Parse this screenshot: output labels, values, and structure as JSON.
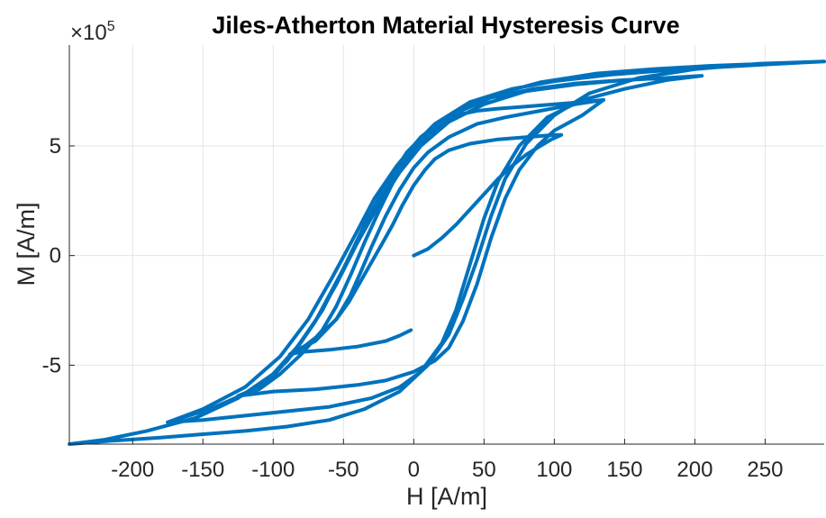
{
  "chart_data": {
    "type": "line",
    "title": "Jiles-Atherton Material Hysteresis Curve",
    "xlabel": "H [A/m]",
    "ylabel": "M [A/m]",
    "xlim": [
      -245,
      292
    ],
    "ylim": [
      -8.6,
      9.6
    ],
    "y_multiplier": "×10",
    "y_exponent": "5",
    "x_ticks": [
      -200,
      -150,
      -100,
      -50,
      0,
      50,
      100,
      150,
      200,
      250
    ],
    "x_tick_labels": [
      "-200",
      "-150",
      "-100",
      "-50",
      "0",
      "50",
      "100",
      "150",
      "200",
      "250"
    ],
    "y_ticks": [
      -5,
      0,
      5
    ],
    "y_tick_labels": [
      "-5",
      "0",
      "5"
    ],
    "grid": true,
    "color": "#0072bd",
    "series": [
      {
        "points": [
          [
            0,
            0
          ],
          [
            10,
            0.3
          ],
          [
            20,
            0.8
          ],
          [
            30,
            1.4
          ],
          [
            40,
            2.1
          ],
          [
            50,
            2.8
          ],
          [
            60,
            3.5
          ],
          [
            70,
            4.1
          ],
          [
            80,
            4.6
          ],
          [
            90,
            5.0
          ],
          [
            98,
            5.3
          ],
          [
            105,
            5.5
          ],
          [
            100,
            5.5
          ],
          [
            80,
            5.4
          ],
          [
            60,
            5.3
          ],
          [
            40,
            5.1
          ],
          [
            25,
            4.8
          ],
          [
            15,
            4.4
          ],
          [
            8,
            3.9
          ],
          [
            0,
            3.2
          ],
          [
            -8,
            2.3
          ],
          [
            -15,
            1.4
          ],
          [
            -22,
            0.6
          ],
          [
            -30,
            -0.3
          ],
          [
            -38,
            -1.2
          ],
          [
            -46,
            -2.1
          ],
          [
            -55,
            -2.9
          ],
          [
            -65,
            -3.5
          ],
          [
            -77,
            -4.1
          ],
          [
            -88,
            -4.5
          ],
          [
            -80,
            -4.4
          ],
          [
            -60,
            -4.3
          ],
          [
            -40,
            -4.15
          ],
          [
            -20,
            -3.9
          ],
          [
            -10,
            -3.65
          ],
          [
            -2,
            -3.4
          ]
        ]
      },
      {
        "points": [
          [
            -88,
            -4.5
          ],
          [
            -70,
            -3.9
          ],
          [
            -55,
            -2.9
          ],
          [
            -45,
            -1.8
          ],
          [
            -38,
            -0.8
          ],
          [
            -30,
            0.4
          ],
          [
            -20,
            1.8
          ],
          [
            -10,
            3.0
          ],
          [
            0,
            4.0
          ],
          [
            10,
            4.7
          ],
          [
            25,
            5.4
          ],
          [
            45,
            6.0
          ],
          [
            65,
            6.3
          ],
          [
            90,
            6.6
          ],
          [
            115,
            6.9
          ],
          [
            135,
            7.1
          ],
          [
            120,
            7.0
          ],
          [
            100,
            6.9
          ],
          [
            80,
            6.8
          ],
          [
            60,
            6.7
          ],
          [
            45,
            6.6
          ],
          [
            30,
            6.4
          ],
          [
            15,
            5.9
          ],
          [
            5,
            5.3
          ],
          [
            -5,
            4.4
          ],
          [
            -15,
            3.3
          ],
          [
            -25,
            2.0
          ],
          [
            -35,
            0.6
          ],
          [
            -45,
            -0.9
          ],
          [
            -55,
            -2.3
          ],
          [
            -65,
            -3.4
          ],
          [
            -80,
            -4.5
          ],
          [
            -95,
            -5.4
          ],
          [
            -110,
            -6.1
          ],
          [
            -125,
            -6.4
          ],
          [
            -100,
            -6.2
          ],
          [
            -70,
            -6.1
          ],
          [
            -40,
            -5.9
          ],
          [
            -20,
            -5.7
          ],
          [
            0,
            -5.3
          ],
          [
            15,
            -4.8
          ],
          [
            25,
            -4.2
          ],
          [
            35,
            -3.0
          ],
          [
            45,
            -1.3
          ],
          [
            55,
            0.8
          ],
          [
            65,
            2.6
          ],
          [
            75,
            3.9
          ],
          [
            88,
            5.0
          ],
          [
            100,
            5.7
          ],
          [
            120,
            6.4
          ],
          [
            135,
            7.1
          ]
        ]
      },
      {
        "points": [
          [
            -125,
            -6.4
          ],
          [
            -110,
            -6.0
          ],
          [
            -90,
            -4.8
          ],
          [
            -70,
            -3.0
          ],
          [
            -55,
            -1.2
          ],
          [
            -40,
            0.6
          ],
          [
            -25,
            2.3
          ],
          [
            -10,
            3.8
          ],
          [
            5,
            5.0
          ],
          [
            25,
            6.1
          ],
          [
            50,
            6.9
          ],
          [
            80,
            7.5
          ],
          [
            115,
            7.8
          ],
          [
            150,
            8.0
          ],
          [
            180,
            8.1
          ],
          [
            205,
            8.2
          ],
          [
            180,
            8.1
          ],
          [
            150,
            8.0
          ],
          [
            115,
            7.85
          ],
          [
            85,
            7.6
          ],
          [
            55,
            7.2
          ],
          [
            30,
            6.5
          ],
          [
            10,
            5.5
          ],
          [
            -10,
            4.0
          ],
          [
            -25,
            2.5
          ],
          [
            -40,
            0.6
          ],
          [
            -55,
            -1.3
          ],
          [
            -70,
            -3.0
          ],
          [
            -85,
            -4.4
          ],
          [
            -100,
            -5.5
          ],
          [
            -120,
            -6.3
          ],
          [
            -145,
            -7.0
          ],
          [
            -175,
            -7.6
          ],
          [
            -150,
            -7.5
          ],
          [
            -120,
            -7.3
          ],
          [
            -90,
            -7.1
          ],
          [
            -60,
            -6.9
          ],
          [
            -30,
            -6.5
          ],
          [
            -10,
            -6.0
          ],
          [
            5,
            -5.3
          ],
          [
            20,
            -4.0
          ],
          [
            30,
            -2.5
          ],
          [
            40,
            -0.4
          ],
          [
            50,
            1.7
          ],
          [
            60,
            3.4
          ],
          [
            75,
            5.0
          ],
          [
            95,
            6.3
          ],
          [
            120,
            7.1
          ],
          [
            150,
            7.6
          ],
          [
            180,
            8.0
          ],
          [
            205,
            8.2
          ]
        ]
      },
      {
        "points": [
          [
            -175,
            -7.6
          ],
          [
            -150,
            -7.0
          ],
          [
            -120,
            -6.0
          ],
          [
            -95,
            -4.6
          ],
          [
            -75,
            -2.9
          ],
          [
            -58,
            -1.0
          ],
          [
            -42,
            0.9
          ],
          [
            -28,
            2.6
          ],
          [
            -12,
            4.1
          ],
          [
            5,
            5.4
          ],
          [
            25,
            6.4
          ],
          [
            55,
            7.3
          ],
          [
            90,
            7.9
          ],
          [
            130,
            8.3
          ],
          [
            170,
            8.5
          ],
          [
            210,
            8.65
          ],
          [
            250,
            8.75
          ],
          [
            292,
            8.85
          ],
          [
            260,
            8.75
          ],
          [
            220,
            8.6
          ],
          [
            180,
            8.45
          ],
          [
            140,
            8.25
          ],
          [
            100,
            7.95
          ],
          [
            70,
            7.6
          ],
          [
            40,
            7.0
          ],
          [
            15,
            6.0
          ],
          [
            -5,
            4.7
          ],
          [
            -20,
            3.2
          ],
          [
            -35,
            1.4
          ],
          [
            -50,
            -0.6
          ],
          [
            -65,
            -2.5
          ],
          [
            -82,
            -4.1
          ],
          [
            -100,
            -5.4
          ],
          [
            -125,
            -6.5
          ],
          [
            -155,
            -7.4
          ],
          [
            -190,
            -8.0
          ],
          [
            -220,
            -8.4
          ],
          [
            -245,
            -8.6
          ],
          [
            -215,
            -8.45
          ],
          [
            -180,
            -8.3
          ],
          [
            -150,
            -8.15
          ],
          [
            -120,
            -8.0
          ],
          [
            -90,
            -7.8
          ],
          [
            -60,
            -7.5
          ],
          [
            -35,
            -7.0
          ],
          [
            -10,
            -6.2
          ],
          [
            10,
            -5.0
          ],
          [
            25,
            -3.6
          ],
          [
            35,
            -2.0
          ],
          [
            45,
            -0.2
          ],
          [
            55,
            1.8
          ],
          [
            65,
            3.5
          ],
          [
            80,
            5.1
          ],
          [
            100,
            6.4
          ],
          [
            125,
            7.4
          ],
          [
            160,
            8.1
          ],
          [
            200,
            8.5
          ],
          [
            245,
            8.75
          ],
          [
            292,
            8.85
          ]
        ]
      }
    ]
  }
}
